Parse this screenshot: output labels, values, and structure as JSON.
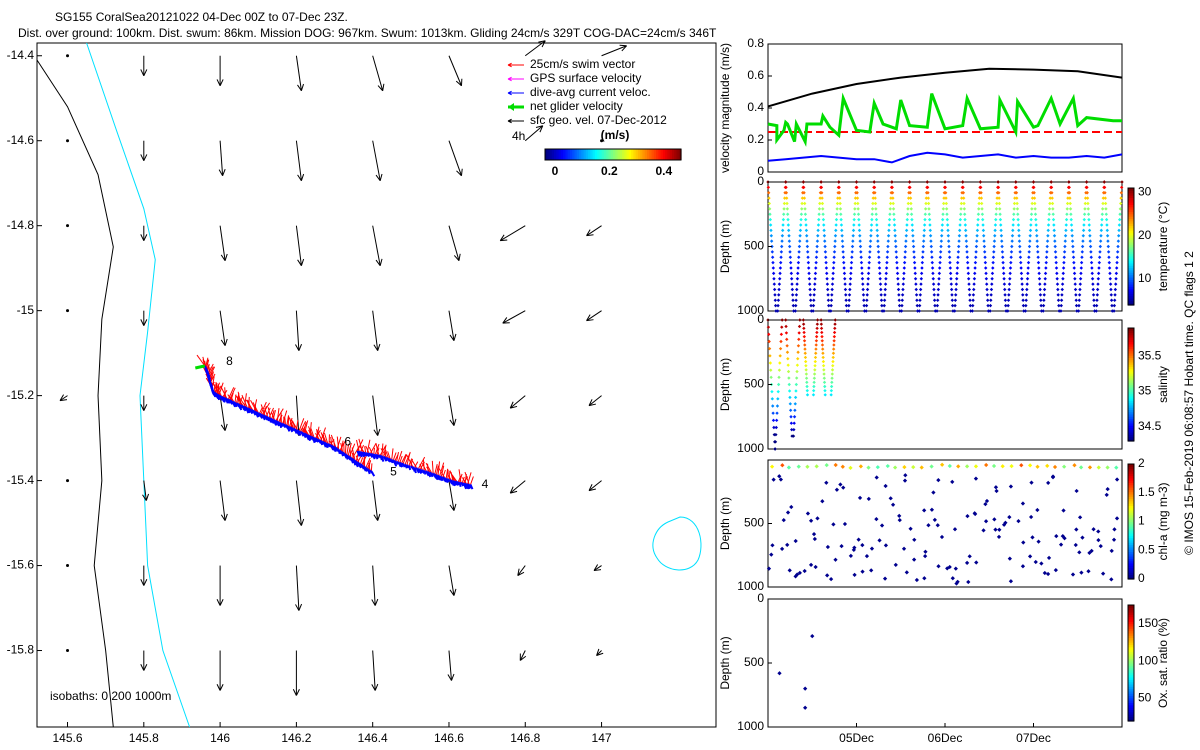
{
  "header": {
    "line1": "SG155 CoralSea20121022 04-Dec 00Z to 07-Dec 23Z.",
    "line2": "Dist. over ground: 100km. Dist. swum: 86km. Mission DOG: 967km. Swum: 1013km. Gliding 24cm/s 329T COG-DAC=24cm/s 346T"
  },
  "colors": {
    "coast": "#000000",
    "isobath200": "#00e0ff",
    "swim": "#ff0000",
    "gps": "#ff00ff",
    "dac": "#0000ff",
    "net": "#00dd00",
    "geo": "#000000"
  },
  "chart_data": [
    {
      "type": "map",
      "xlim": [
        145.52,
        147.3
      ],
      "ylim": [
        -15.98,
        -14.37
      ],
      "xticks": [
        "145.6",
        "145.8",
        "146",
        "146.2",
        "146.4",
        "146.6",
        "146.8",
        "147"
      ],
      "xtick_values": [
        145.6,
        145.8,
        146.0,
        146.2,
        146.4,
        146.6,
        146.8,
        147.0
      ],
      "yticks": [
        "-14.4",
        "-14.6",
        "-14.8",
        "-15",
        "-15.2",
        "-15.4",
        "-15.6",
        "-15.8"
      ],
      "ytick_values": [
        -14.4,
        -14.6,
        -14.8,
        -15.0,
        -15.2,
        -15.4,
        -15.6,
        -15.8
      ],
      "legend": [
        {
          "label": "25cm/s swim vector",
          "color": "#ff0000"
        },
        {
          "label": "GPS surface velocity",
          "color": "#ff00ff"
        },
        {
          "label": "dive-avg current veloc.",
          "color": "#0000ff"
        },
        {
          "label": "net glider velocity",
          "color": "#00dd00"
        },
        {
          "label": "sfc geo. vel. 07-Dec-2012",
          "color": "#000000"
        }
      ],
      "colorbar": {
        "title": "(m/s)",
        "ticks": [
          "0",
          "0.2",
          "0.4"
        ],
        "tick_values": [
          0,
          0.2,
          0.4
        ],
        "range": [
          0,
          0.5
        ]
      },
      "scale_label": "4h",
      "isobath_label": "isobaths: 0   200  1000m",
      "track_labels": [
        {
          "text": "8",
          "lon": 146.0,
          "lat": -15.12
        },
        {
          "text": "6",
          "lon": 146.31,
          "lat": -15.31
        },
        {
          "text": "5",
          "lon": 146.43,
          "lat": -15.38
        },
        {
          "text": "4",
          "lon": 146.67,
          "lat": -15.41
        }
      ],
      "track": [
        [
          145.96,
          -15.13
        ],
        [
          145.97,
          -15.16
        ],
        [
          145.98,
          -15.19
        ],
        [
          146.0,
          -15.2
        ],
        [
          146.05,
          -15.22
        ],
        [
          146.1,
          -15.24
        ],
        [
          146.15,
          -15.26
        ],
        [
          146.2,
          -15.28
        ],
        [
          146.25,
          -15.3
        ],
        [
          146.3,
          -15.32
        ],
        [
          146.35,
          -15.35
        ],
        [
          146.4,
          -15.38
        ],
        [
          146.36,
          -15.33
        ],
        [
          146.42,
          -15.34
        ],
        [
          146.48,
          -15.36
        ],
        [
          146.55,
          -15.38
        ],
        [
          146.61,
          -15.4
        ],
        [
          146.66,
          -15.41
        ]
      ],
      "geo_vectors": {
        "lons": [
          145.6,
          145.8,
          146.0,
          146.2,
          146.4,
          146.6,
          146.8,
          147.0
        ],
        "lats": [
          -14.4,
          -14.6,
          -14.8,
          -15.0,
          -15.2,
          -15.4,
          -15.6,
          -15.8
        ],
        "u": [
          [
            0.0,
            0.0,
            0.0,
            0.02,
            0.04,
            0.05,
            0.08,
            0.1
          ],
          [
            0.0,
            0.0,
            0.01,
            0.02,
            0.03,
            0.05,
            0.07,
            0.0
          ],
          [
            0.0,
            0.0,
            0.02,
            0.02,
            0.03,
            0.04,
            -0.1,
            -0.06
          ],
          [
            0.0,
            0.0,
            0.02,
            0.01,
            0.02,
            0.02,
            -0.09,
            -0.06
          ],
          [
            -0.03,
            0.0,
            0.02,
            0.01,
            0.02,
            0.02,
            -0.06,
            -0.05
          ],
          [
            0.0,
            0.01,
            0.02,
            0.02,
            0.02,
            0.02,
            -0.06,
            -0.05
          ],
          [
            0.0,
            0.0,
            0.0,
            0.01,
            0.01,
            0.02,
            -0.03,
            -0.03
          ],
          [
            0.0,
            0.0,
            0.0,
            0.0,
            0.01,
            0.01,
            -0.02,
            -0.02
          ]
        ],
        "v": [
          [
            -0.02,
            -0.08,
            -0.12,
            -0.14,
            -0.14,
            -0.12,
            0.06,
            0.04
          ],
          [
            -0.02,
            -0.08,
            -0.14,
            -0.16,
            -0.16,
            -0.14,
            0.06,
            0.0
          ],
          [
            -0.01,
            -0.06,
            -0.14,
            -0.16,
            -0.16,
            -0.14,
            -0.06,
            -0.04
          ],
          [
            -0.01,
            -0.06,
            -0.14,
            -0.16,
            -0.16,
            -0.12,
            -0.05,
            -0.04
          ],
          [
            -0.02,
            -0.06,
            -0.14,
            -0.16,
            -0.16,
            -0.12,
            -0.05,
            -0.04
          ],
          [
            -0.02,
            -0.08,
            -0.16,
            -0.18,
            -0.16,
            -0.12,
            -0.05,
            -0.04
          ],
          [
            -0.01,
            -0.08,
            -0.16,
            -0.18,
            -0.16,
            -0.12,
            -0.04,
            -0.02
          ],
          [
            0.0,
            -0.08,
            -0.16,
            -0.18,
            -0.16,
            -0.12,
            -0.04,
            -0.02
          ]
        ]
      }
    },
    {
      "type": "line",
      "ylabel": "velocity magnitude (m/s)",
      "ylim": [
        0,
        0.8
      ],
      "yticks": [
        "0",
        "0.2",
        "0.4",
        "0.6",
        "0.8"
      ],
      "ytick_values": [
        0,
        0.2,
        0.4,
        0.6,
        0.8
      ],
      "series": [
        {
          "color": "#000000",
          "x": [
            0,
            0.5,
            1,
            1.5,
            2,
            2.5,
            3,
            3.5,
            4
          ],
          "values": [
            0.41,
            0.49,
            0.55,
            0.59,
            0.62,
            0.645,
            0.64,
            0.63,
            0.59
          ]
        },
        {
          "color": "#ff0000",
          "x": [
            0,
            4
          ],
          "values": [
            0.25,
            0.25
          ]
        },
        {
          "color": "#0000ff",
          "x": [
            0,
            0.2,
            0.4,
            0.6,
            0.8,
            1.0,
            1.2,
            1.4,
            1.6,
            1.8,
            2.0,
            2.2,
            2.4,
            2.6,
            2.8,
            3.0,
            3.2,
            3.4,
            3.6,
            3.8,
            4.0
          ],
          "values": [
            0.07,
            0.08,
            0.09,
            0.1,
            0.09,
            0.08,
            0.08,
            0.06,
            0.1,
            0.12,
            0.11,
            0.09,
            0.1,
            0.11,
            0.09,
            0.1,
            0.09,
            0.09,
            0.1,
            0.09,
            0.11
          ]
        },
        {
          "color": "#00dd00",
          "x": [
            0,
            0.1,
            0.1,
            0.18,
            0.2,
            0.22,
            0.3,
            0.32,
            0.42,
            0.44,
            0.6,
            0.62,
            0.7,
            0.8,
            0.85,
            1.0,
            1.15,
            1.2,
            1.3,
            1.45,
            1.5,
            1.6,
            1.8,
            1.85,
            2.0,
            2.2,
            2.25,
            2.4,
            2.6,
            2.62,
            2.8,
            2.82,
            3.0,
            3.05,
            3.2,
            3.3,
            3.45,
            3.5,
            3.6,
            3.9,
            4.0
          ],
          "values": [
            0.3,
            0.29,
            0.2,
            0.26,
            0.31,
            0.3,
            0.19,
            0.3,
            0.19,
            0.3,
            0.3,
            0.35,
            0.28,
            0.23,
            0.46,
            0.26,
            0.25,
            0.43,
            0.3,
            0.27,
            0.45,
            0.29,
            0.28,
            0.49,
            0.27,
            0.29,
            0.46,
            0.27,
            0.28,
            0.45,
            0.25,
            0.44,
            0.28,
            0.29,
            0.46,
            0.3,
            0.46,
            0.29,
            0.34,
            0.32,
            0.32
          ]
        }
      ],
      "xlim": [
        0,
        4
      ]
    },
    {
      "type": "scatter",
      "ylabel": "Depth (m)",
      "ylim": [
        1000,
        0
      ],
      "yticks": [
        "0",
        "500",
        "1000"
      ],
      "ytick_values": [
        0,
        500,
        1000
      ],
      "colorbar_label": "temperature (°C)",
      "colorbar_ticks": [
        "10",
        "20",
        "30"
      ],
      "colorbar_tick_values": [
        10,
        20,
        30
      ],
      "colorbar_range": [
        4,
        31
      ],
      "dive_times": [
        0.0,
        0.2,
        0.4,
        0.6,
        0.8,
        1.0,
        1.2,
        1.4,
        1.6,
        1.8,
        2.0,
        2.2,
        2.4,
        2.6,
        2.8,
        3.0,
        3.2,
        3.4,
        3.6,
        3.8,
        4.0
      ],
      "max_depth": 1000,
      "xlim": [
        0,
        4
      ]
    },
    {
      "type": "scatter",
      "ylabel": "Depth (m)",
      "ylim": [
        1000,
        0
      ],
      "yticks": [
        "0",
        "500",
        "1000"
      ],
      "ytick_values": [
        0,
        500,
        1000
      ],
      "colorbar_label": "salinity",
      "colorbar_ticks": [
        "34.5",
        "35",
        "35.5"
      ],
      "colorbar_tick_values": [
        34.5,
        35.0,
        35.5
      ],
      "colorbar_range": [
        34.3,
        35.9
      ],
      "dive_times": [
        0.0,
        0.2,
        0.4,
        0.6
      ],
      "dive_depths": [
        1000,
        900,
        580,
        580
      ],
      "xlim": [
        0,
        4
      ]
    },
    {
      "type": "scatter",
      "ylabel": "Depth (m)",
      "ylim": [
        1000,
        0
      ],
      "yticks": [
        "500",
        "1000"
      ],
      "ytick_values": [
        500,
        1000
      ],
      "colorbar_label": "chl-a (mg m-3)",
      "colorbar_ticks": [
        "0",
        "0.5",
        "1",
        "1.5",
        "2"
      ],
      "colorbar_tick_values": [
        0,
        0.5,
        1,
        1.5,
        2
      ],
      "colorbar_range": [
        0,
        2
      ],
      "xlim": [
        0,
        4
      ]
    },
    {
      "type": "scatter",
      "ylabel": "Depth (m)",
      "ylim": [
        1000,
        0
      ],
      "yticks": [
        "0",
        "500",
        "1000"
      ],
      "ytick_values": [
        0,
        500,
        1000
      ],
      "colorbar_label": "Ox. sat. ratio (%)",
      "colorbar_ticks": [
        "50",
        "100",
        "150"
      ],
      "colorbar_tick_values": [
        50,
        100,
        150
      ],
      "colorbar_range": [
        20,
        175
      ],
      "points": [
        [
          0.5,
          290
        ],
        [
          0.13,
          580
        ],
        [
          0.42,
          700
        ],
        [
          0.42,
          850
        ]
      ],
      "xticks": [
        "05Dec",
        "06Dec",
        "07Dec"
      ],
      "xtick_values": [
        1,
        2,
        3
      ],
      "xlim": [
        0,
        4
      ]
    }
  ],
  "side_note": "© IMOS 15-Feb-2019 06:08:57 Hobart time. QC flags 1  2"
}
